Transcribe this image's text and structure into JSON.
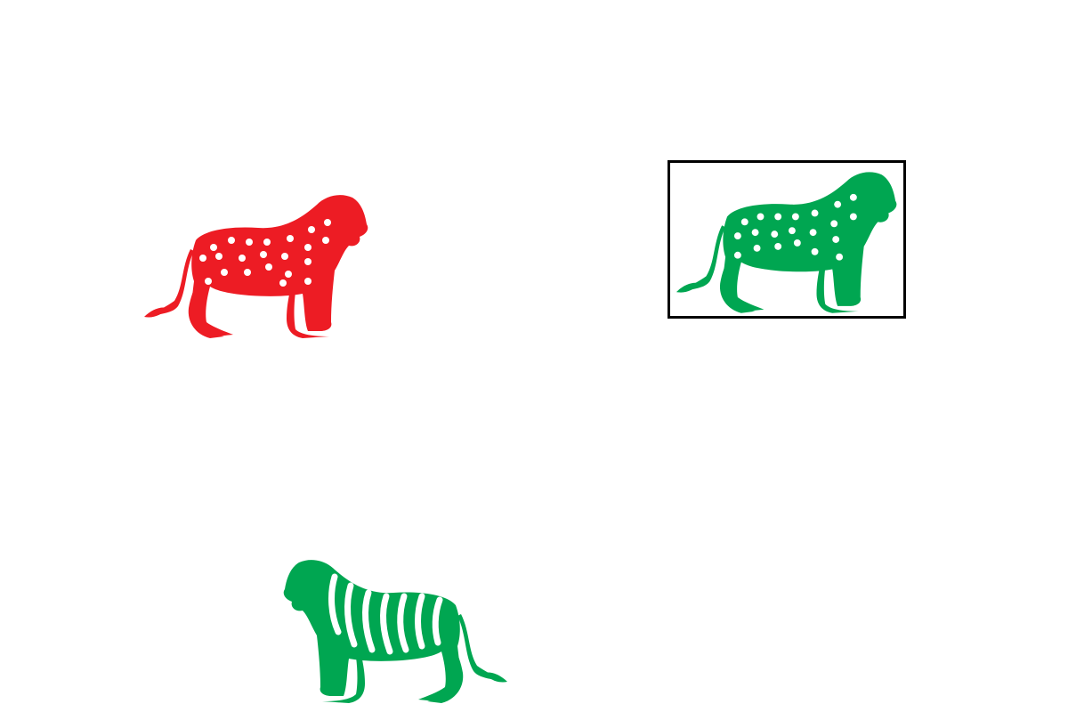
{
  "scene": {
    "background_color": "#ffffff",
    "selection_color": "#000000",
    "figures": [
      {
        "id": "red-spotted-lion",
        "icon": "lion-icon",
        "color": "#ed1c24",
        "pattern": "spots",
        "facing": "right",
        "selected": false
      },
      {
        "id": "green-spotted-lion",
        "icon": "lion-icon",
        "color": "#00a651",
        "pattern": "spots",
        "facing": "right",
        "selected": true
      },
      {
        "id": "green-striped-lion",
        "icon": "lion-icon",
        "color": "#00a651",
        "pattern": "stripes",
        "facing": "left",
        "selected": false
      }
    ]
  }
}
